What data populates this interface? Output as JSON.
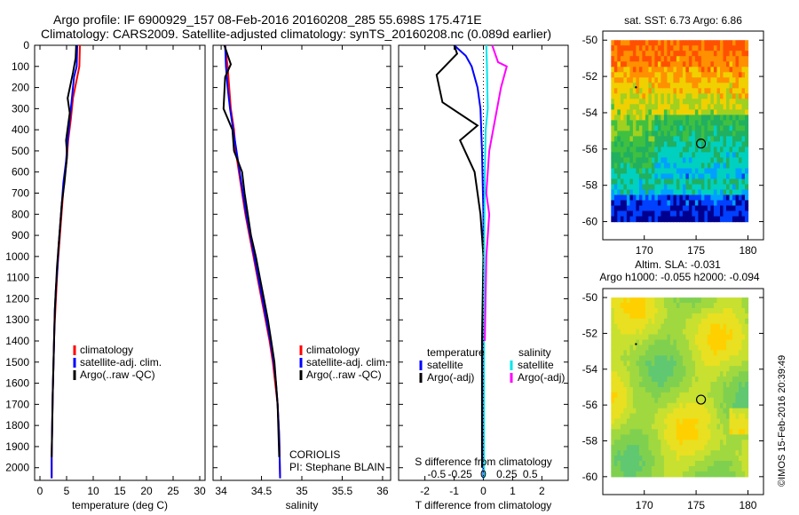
{
  "title": {
    "line1": "Argo profile: IF 6900929_157 08-Feb-2016 20160208_285 55.698S 175.471E",
    "line2": "Climatology: CARS2009. Satellite-adjusted climatology: synTS_20160208.nc (0.089d earlier)"
  },
  "credit": "©IMOS 15-Feb-2016 20:39:49",
  "colors": {
    "climatology": "#ff0000",
    "satellite": "#0000ff",
    "argo": "#000000",
    "sal_satellite": "#00e5ee",
    "sal_argo": "#ff00ff"
  },
  "chart_data": [
    {
      "type": "line",
      "panel": "temperature",
      "xlabel": "temperature (deg C)",
      "ylabel": "",
      "xlim": [
        -1,
        31
      ],
      "ylim": [
        2060,
        0
      ],
      "xticks": [
        "0",
        "5",
        "10",
        "15",
        "20",
        "25",
        "30"
      ],
      "xtick_values": [
        0,
        5,
        10,
        15,
        20,
        25,
        30
      ],
      "yticks": [
        "0",
        "100",
        "200",
        "300",
        "400",
        "500",
        "600",
        "700",
        "800",
        "900",
        "1000",
        "1100",
        "1200",
        "1300",
        "1400",
        "1500",
        "1600",
        "1700",
        "1800",
        "1900",
        "2000"
      ],
      "ytick_values": [
        0,
        100,
        200,
        300,
        400,
        500,
        600,
        700,
        800,
        900,
        1000,
        1100,
        1200,
        1300,
        1400,
        1500,
        1600,
        1700,
        1800,
        1900,
        2000
      ],
      "legend": [
        "climatology",
        "satellite-adj. clim.",
        "Argo(..raw -QC)"
      ],
      "series": [
        {
          "name": "climatology",
          "color": "#ff0000",
          "x": [
            7.5,
            7.4,
            7.0,
            6.2,
            5.8,
            5.3,
            5.0,
            4.5,
            4.2,
            3.9,
            3.6,
            3.3,
            3.1,
            2.9,
            2.7,
            2.6,
            2.5,
            2.4,
            2.3,
            2.2,
            2.2
          ],
          "y": [
            0,
            100,
            150,
            250,
            350,
            450,
            550,
            650,
            750,
            850,
            950,
            1050,
            1150,
            1250,
            1350,
            1450,
            1550,
            1650,
            1800,
            1950,
            2050
          ]
        },
        {
          "name": "satellite-adj. clim.",
          "color": "#0000ff",
          "x": [
            7.0,
            6.9,
            6.4,
            6.0,
            5.6,
            5.2,
            4.9,
            4.4,
            4.1,
            3.8,
            3.5,
            3.3,
            3.0,
            2.8,
            2.7,
            2.6,
            2.5,
            2.4,
            2.3,
            2.2,
            2.2
          ],
          "y": [
            0,
            100,
            150,
            250,
            350,
            450,
            550,
            650,
            750,
            850,
            950,
            1050,
            1150,
            1250,
            1350,
            1450,
            1550,
            1650,
            1800,
            1950,
            2050
          ]
        },
        {
          "name": "Argo(..raw -QC)",
          "color": "#000000",
          "x": [
            6.8,
            6.7,
            6.2,
            5.2,
            5.6,
            4.9,
            5.1,
            4.6,
            4.1,
            3.8,
            3.5,
            3.2,
            3.0,
            2.8,
            2.7,
            2.6,
            2.5,
            2.4,
            2.3,
            2.2
          ],
          "y": [
            0,
            60,
            130,
            250,
            320,
            450,
            520,
            650,
            750,
            850,
            950,
            1050,
            1150,
            1250,
            1350,
            1450,
            1550,
            1650,
            1800,
            1950
          ]
        }
      ]
    },
    {
      "type": "line",
      "panel": "salinity",
      "xlabel": "salinity",
      "xlim": [
        33.9,
        36.1
      ],
      "ylim": [
        2060,
        0
      ],
      "xticks": [
        "34",
        "34.5",
        "35",
        "35.5",
        "36"
      ],
      "xtick_values": [
        34,
        34.5,
        35,
        35.5,
        36
      ],
      "legend": [
        "climatology",
        "satellite-adj. clim.",
        "Argo(..raw -QC)"
      ],
      "annotations": [
        "CORIOLIS",
        "PI: Stephane BLAIN"
      ],
      "series": [
        {
          "name": "climatology",
          "color": "#ff0000",
          "x": [
            34.05,
            34.08,
            34.1,
            34.12,
            34.16,
            34.18,
            34.22,
            34.26,
            34.3,
            34.35,
            34.4,
            34.45,
            34.5,
            34.55,
            34.6,
            34.64,
            34.67,
            34.7,
            34.72,
            34.73
          ],
          "y": [
            0,
            100,
            200,
            300,
            400,
            500,
            600,
            700,
            800,
            900,
            1000,
            1100,
            1200,
            1300,
            1400,
            1500,
            1600,
            1700,
            1850,
            2050
          ]
        },
        {
          "name": "satellite-adj. clim.",
          "color": "#0000ff",
          "x": [
            34.05,
            34.06,
            34.08,
            34.11,
            34.15,
            34.19,
            34.23,
            34.27,
            34.31,
            34.36,
            34.41,
            34.46,
            34.51,
            34.56,
            34.61,
            34.65,
            34.68,
            34.7,
            34.72,
            34.73
          ],
          "y": [
            0,
            100,
            200,
            300,
            400,
            500,
            600,
            700,
            800,
            900,
            1000,
            1100,
            1200,
            1300,
            1400,
            1500,
            1600,
            1700,
            1850,
            2050
          ]
        },
        {
          "name": "Argo(..raw -QC)",
          "color": "#000000",
          "x": [
            34.04,
            34.12,
            34.05,
            34.03,
            34.14,
            34.16,
            34.26,
            34.29,
            34.33,
            34.37,
            34.43,
            34.48,
            34.53,
            34.58,
            34.62,
            34.66,
            34.68,
            34.7,
            34.72
          ],
          "y": [
            0,
            90,
            150,
            300,
            400,
            500,
            600,
            700,
            800,
            900,
            1000,
            1100,
            1200,
            1300,
            1400,
            1500,
            1600,
            1700,
            1950
          ]
        }
      ]
    },
    {
      "type": "line",
      "panel": "difference",
      "xlabel": "T difference from climatology",
      "xlim": [
        -2.9,
        2.9
      ],
      "ylim": [
        2060,
        0
      ],
      "xticks": [
        "-2",
        "-1",
        "0",
        "1",
        "2"
      ],
      "xtick_values": [
        -2,
        -1,
        0,
        1,
        2
      ],
      "top_label": "S difference from climatology",
      "top_xticks": [
        "-0.5",
        "-0.25",
        "0",
        "0.25",
        "0.5"
      ],
      "legend_headers": [
        "temperature",
        "salinity"
      ],
      "legend": [
        "satellite",
        "Argo(-adj)",
        "satellite",
        "Argo(-adj)"
      ],
      "series": [
        {
          "name": "satellite",
          "color": "#0000ff",
          "x": [
            -1.0,
            -0.6,
            -0.4,
            -0.2,
            -0.1,
            -0.05,
            0,
            0,
            0,
            0,
            0
          ],
          "y": [
            0,
            50,
            100,
            200,
            300,
            500,
            800,
            1100,
            1400,
            1700,
            2050
          ]
        },
        {
          "name": "Argo(-adj)",
          "color": "#000000",
          "x": [
            -1.0,
            -0.9,
            -1.6,
            -1.4,
            -0.2,
            -0.8,
            -0.3,
            -0.1,
            0,
            -0.05,
            -0.05,
            -0.05
          ],
          "y": [
            0,
            40,
            140,
            270,
            380,
            450,
            600,
            800,
            1000,
            1400,
            1700,
            2000
          ]
        },
        {
          "name": "satellite",
          "color": "#00e5ee",
          "x": [
            0.1,
            0.12,
            0.15,
            0.08,
            0.05,
            0.03,
            0.02,
            0.02,
            0.02
          ],
          "y": [
            0,
            100,
            300,
            400,
            600,
            900,
            1200,
            1600,
            2050
          ]
        },
        {
          "name": "Argo(-adj)",
          "color": "#ff00ff",
          "x": [
            0.3,
            0.5,
            0.8,
            0.6,
            0.4,
            0.2,
            0.1,
            0.2,
            0.1,
            0.05
          ],
          "y": [
            0,
            80,
            100,
            200,
            350,
            500,
            700,
            800,
            1000,
            1400
          ]
        }
      ]
    },
    {
      "type": "heatmap",
      "panel": "sst_map",
      "title": "sat. SST: 6.73 Argo: 6.86",
      "xlim": [
        166,
        181.5
      ],
      "ylim": [
        -61,
        -49.5
      ],
      "xticks": [
        "170",
        "175",
        "180"
      ],
      "xtick_values": [
        170,
        175,
        180
      ],
      "yticks": [
        "-50",
        "-52",
        "-54",
        "-56",
        "-58",
        "-60"
      ],
      "ytick_values": [
        -50,
        -52,
        -54,
        -56,
        -58,
        -60
      ],
      "argo_location": [
        175.471,
        -55.698
      ]
    },
    {
      "type": "heatmap",
      "panel": "sla_map",
      "title": "Altim. SLA: -0.031",
      "subtitle": "Argo h1000: -0.055 h2000: -0.094",
      "xlim": [
        166,
        181.5
      ],
      "ylim": [
        -61,
        -49.5
      ],
      "xticks": [
        "170",
        "175",
        "180"
      ],
      "xtick_values": [
        170,
        175,
        180
      ],
      "yticks": [
        "-50",
        "-52",
        "-54",
        "-56",
        "-58",
        "-60"
      ],
      "ytick_values": [
        -50,
        -52,
        -54,
        -56,
        -58,
        -60
      ],
      "argo_location": [
        175.471,
        -55.698
      ]
    }
  ]
}
